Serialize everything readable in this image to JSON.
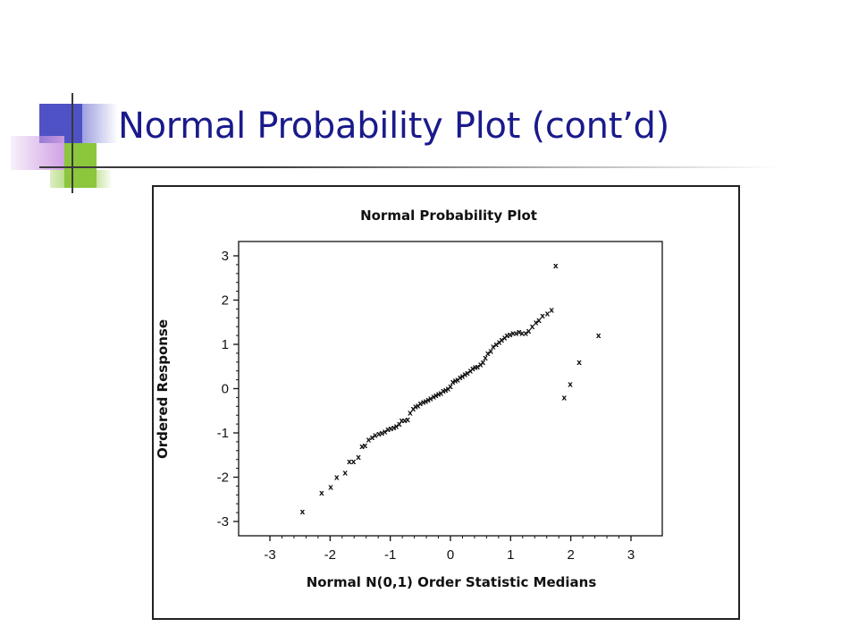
{
  "slide": {
    "title": "Normal Probability Plot (cont’d)",
    "title_color": "#1a1a8c",
    "ornament_colors": [
      "#4f52c4",
      "#ce9ce2",
      "#8cc63c"
    ]
  },
  "chart_data": {
    "type": "scatter",
    "title": "Normal Probability Plot",
    "xlabel": "Normal N(0,1) Order Statistic Medians",
    "ylabel": "Ordered Response",
    "xlim": [
      -3,
      3
    ],
    "ylim": [
      -3,
      3
    ],
    "xticks": [
      "-3",
      "-2",
      "-1",
      "0",
      "1",
      "2",
      "3"
    ],
    "yticks": [
      "-3",
      "-2",
      "-1",
      "0",
      "1",
      "2",
      "3"
    ],
    "marker": "x",
    "grid": false,
    "x": [
      -2.46,
      -2.14,
      -1.99,
      -1.89,
      -1.75,
      -1.68,
      -1.61,
      -1.53,
      -1.47,
      -1.42,
      -1.36,
      -1.3,
      -1.25,
      -1.19,
      -1.14,
      -1.09,
      -1.04,
      -0.99,
      -0.94,
      -0.9,
      -0.85,
      -0.81,
      -0.76,
      -0.71,
      -0.67,
      -0.62,
      -0.58,
      -0.54,
      -0.5,
      -0.45,
      -0.41,
      -0.37,
      -0.33,
      -0.28,
      -0.24,
      -0.2,
      -0.16,
      -0.12,
      -0.08,
      -0.04,
      0.0,
      0.04,
      0.08,
      0.12,
      0.16,
      0.2,
      0.24,
      0.28,
      0.33,
      0.37,
      0.41,
      0.45,
      0.5,
      0.54,
      0.58,
      0.62,
      0.67,
      0.71,
      0.76,
      0.81,
      0.85,
      0.9,
      0.94,
      0.99,
      1.04,
      1.09,
      1.14,
      1.19,
      1.25,
      1.3,
      1.36,
      1.42,
      1.47,
      1.53,
      1.61,
      1.68,
      1.75,
      1.89,
      1.99,
      2.14,
      2.46
    ],
    "y": [
      -2.78,
      -2.35,
      -2.22,
      -2.0,
      -1.9,
      -1.65,
      -1.65,
      -1.55,
      -1.3,
      -1.28,
      -1.15,
      -1.1,
      -1.05,
      -1.02,
      -1.0,
      -0.97,
      -0.92,
      -0.9,
      -0.88,
      -0.85,
      -0.8,
      -0.72,
      -0.72,
      -0.7,
      -0.55,
      -0.45,
      -0.4,
      -0.38,
      -0.33,
      -0.3,
      -0.28,
      -0.25,
      -0.22,
      -0.18,
      -0.15,
      -0.12,
      -0.1,
      -0.05,
      -0.03,
      0.0,
      0.05,
      0.15,
      0.18,
      0.2,
      0.25,
      0.28,
      0.32,
      0.35,
      0.4,
      0.45,
      0.48,
      0.5,
      0.55,
      0.6,
      0.7,
      0.8,
      0.85,
      0.95,
      1.0,
      1.05,
      1.1,
      1.15,
      1.2,
      1.22,
      1.25,
      1.25,
      1.28,
      1.25,
      1.25,
      1.3,
      1.4,
      1.5,
      1.55,
      1.65,
      1.7,
      1.78,
      2.78,
      -0.2,
      0.1,
      0.6,
      1.2
    ]
  }
}
